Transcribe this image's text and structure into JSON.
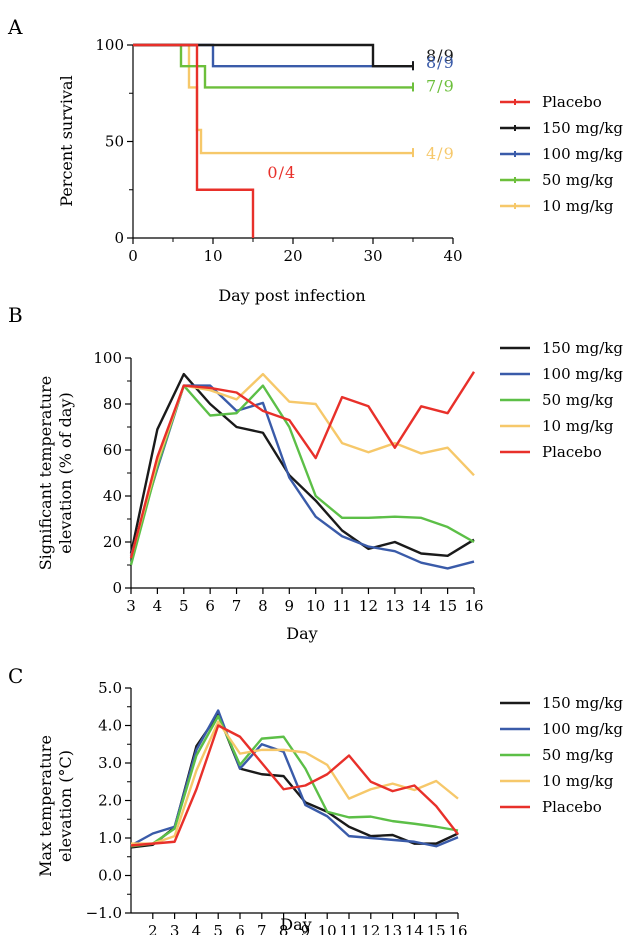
{
  "chart_data": [
    {
      "panel": "A",
      "type": "line",
      "step": true,
      "xlabel": "Day post infection",
      "ylabel": "Percent survival",
      "xlim": [
        0,
        40
      ],
      "ylim": [
        0,
        100
      ],
      "xticks": [
        "0",
        "10",
        "20",
        "30",
        "40"
      ],
      "yticks": [
        "0",
        "50",
        "100"
      ],
      "legend_position": "right",
      "series": [
        {
          "name": "Placebo",
          "color": "#e8302a",
          "x": [
            0,
            8,
            8,
            15,
            15
          ],
          "y": [
            100,
            100,
            25,
            25,
            0
          ],
          "end_label": "0/4"
        },
        {
          "name": "150 mg/kg",
          "color": "#1a1a1a",
          "x": [
            0,
            30,
            30,
            35
          ],
          "y": [
            100,
            100,
            89,
            89
          ],
          "end_label": "8/9"
        },
        {
          "name": "100 mg/kg",
          "color": "#3a5ba9",
          "x": [
            0,
            10,
            10,
            35
          ],
          "y": [
            100,
            100,
            89,
            89
          ],
          "end_label": "8/9"
        },
        {
          "name": "50 mg/kg",
          "color": "#6cbf3b",
          "x": [
            0,
            6,
            6,
            9,
            9,
            35
          ],
          "y": [
            100,
            100,
            89,
            89,
            78,
            78
          ],
          "end_label": "7/9"
        },
        {
          "name": "10 mg/kg",
          "color": "#f6c86a",
          "x": [
            0,
            7,
            7,
            8,
            8,
            8.5,
            8.5,
            35
          ],
          "y": [
            100,
            100,
            78,
            78,
            56,
            56,
            44,
            44
          ],
          "end_label": "4/9"
        }
      ]
    },
    {
      "panel": "B",
      "type": "line",
      "xlabel": "Day",
      "ylabel": "Significant temperature elevation (% of day)",
      "ylabel_lines": [
        "Significant temperature",
        "elevation (% of day)"
      ],
      "x": [
        3,
        4,
        5,
        6,
        7,
        8,
        9,
        10,
        11,
        12,
        13,
        14,
        15,
        16
      ],
      "xlim": [
        3,
        16
      ],
      "ylim": [
        0,
        100
      ],
      "xticks": [
        "3",
        "4",
        "5",
        "6",
        "7",
        "8",
        "9",
        "10",
        "11",
        "12",
        "13",
        "14",
        "15",
        "16"
      ],
      "yticks": [
        "0",
        "20",
        "40",
        "60",
        "80",
        "100"
      ],
      "legend_position": "right",
      "series": [
        {
          "name": "150 mg/kg",
          "color": "#1a1a1a",
          "values": [
            15,
            69,
            93,
            80,
            70,
            67.5,
            49,
            38,
            25,
            17,
            20,
            15,
            14,
            21
          ]
        },
        {
          "name": "100 mg/kg",
          "color": "#3a5ba9",
          "values": [
            14,
            52,
            88,
            88,
            77,
            80.5,
            48,
            31,
            22.5,
            18,
            16,
            11,
            8.5,
            11.5
          ]
        },
        {
          "name": "50 mg/kg",
          "color": "#5cbf47",
          "values": [
            10,
            53,
            88,
            75,
            76,
            88,
            70,
            40,
            30.5,
            30.5,
            31,
            30.5,
            26.5,
            20
          ]
        },
        {
          "name": "10 mg/kg",
          "color": "#f6c86a",
          "values": [
            13,
            55,
            88,
            86,
            82,
            93,
            81,
            80,
            63,
            59,
            63,
            58.5,
            61,
            49
          ]
        },
        {
          "name": "Placebo",
          "color": "#e8302a",
          "values": [
            13,
            57,
            88,
            87,
            85,
            77,
            73,
            56.5,
            83,
            79,
            61,
            79,
            76,
            94
          ]
        }
      ]
    },
    {
      "panel": "C",
      "type": "line",
      "xlabel": "Day",
      "ylabel": "Max temperature elevation (°C)",
      "ylabel_lines": [
        "Max temperature",
        "elevation (°C)"
      ],
      "x": [
        1,
        2,
        3,
        4,
        5,
        6,
        7,
        8,
        9,
        10,
        11,
        12,
        13,
        14,
        15,
        16
      ],
      "xlim": [
        1,
        16
      ],
      "ylim": [
        -1,
        5
      ],
      "xticks": [
        "2",
        "3",
        "4",
        "5",
        "6",
        "7",
        "8",
        "9",
        "10",
        "11",
        "12",
        "13",
        "14",
        "15",
        "16"
      ],
      "yticks": [
        "−1.0",
        "0.0",
        "1.0",
        "2.0",
        "3.0",
        "4.0",
        "5.0"
      ],
      "legend_position": "right",
      "series": [
        {
          "name": "150 mg/kg",
          "color": "#1a1a1a",
          "values": [
            0.75,
            0.82,
            1.28,
            3.45,
            4.3,
            2.85,
            2.7,
            2.65,
            1.95,
            1.7,
            1.3,
            1.05,
            1.08,
            0.85,
            0.85,
            1.12
          ]
        },
        {
          "name": "100 mg/kg",
          "color": "#3a5ba9",
          "values": [
            0.8,
            1.12,
            1.3,
            3.35,
            4.4,
            2.85,
            3.5,
            3.3,
            1.88,
            1.58,
            1.05,
            1.0,
            0.95,
            0.9,
            0.78,
            1.02
          ]
        },
        {
          "name": "50 mg/kg",
          "color": "#5cbf47",
          "values": [
            0.78,
            0.85,
            1.25,
            3.2,
            4.25,
            2.95,
            3.65,
            3.7,
            2.85,
            1.7,
            1.55,
            1.57,
            1.45,
            1.38,
            1.3,
            1.2
          ]
        },
        {
          "name": "10 mg/kg",
          "color": "#f6c86a",
          "values": [
            0.85,
            0.85,
            1.05,
            2.8,
            4.1,
            3.25,
            3.35,
            3.35,
            3.28,
            2.95,
            2.05,
            2.3,
            2.45,
            2.28,
            2.52,
            2.05
          ]
        },
        {
          "name": "Placebo",
          "color": "#e8302a",
          "values": [
            0.8,
            0.85,
            0.9,
            2.3,
            4.0,
            3.7,
            3.0,
            2.3,
            2.4,
            2.7,
            3.2,
            2.5,
            2.25,
            2.4,
            1.85,
            1.1
          ]
        }
      ]
    }
  ]
}
